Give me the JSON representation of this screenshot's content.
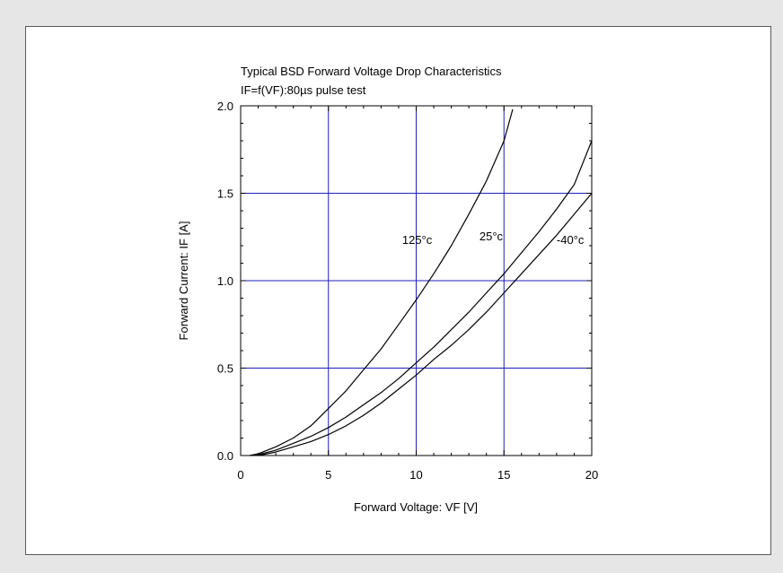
{
  "chart_data": {
    "type": "line",
    "title": "Typical BSD Forward Voltage Drop Characteristics",
    "subtitle": "IF=f(VF):80µs pulse test",
    "xlabel": "Forward Voltage: VF [V]",
    "ylabel": "Forward Current: IF [A]",
    "xlim": [
      0,
      20
    ],
    "ylim": [
      0,
      2.0
    ],
    "x_ticks": [
      0,
      5,
      10,
      15,
      20
    ],
    "x_tick_labels": [
      "0",
      "5",
      "10",
      "15",
      "20"
    ],
    "y_ticks": [
      0,
      0.5,
      1.0,
      1.5,
      2.0
    ],
    "y_tick_labels": [
      "0.0",
      "0.5",
      "1.0",
      "1.5",
      "2.0"
    ],
    "grid": true,
    "grid_color": "#1f1fbf",
    "series": [
      {
        "name": "125°c",
        "x": [
          0.5,
          1,
          2,
          3,
          4,
          5,
          6,
          7,
          8,
          9,
          10,
          11,
          12,
          13,
          14,
          15,
          15.5
        ],
        "y": [
          0.0,
          0.01,
          0.05,
          0.1,
          0.17,
          0.27,
          0.37,
          0.49,
          0.61,
          0.75,
          0.89,
          1.04,
          1.2,
          1.38,
          1.57,
          1.8,
          1.98
        ]
      },
      {
        "name": "25°c",
        "x": [
          0.8,
          2,
          3,
          4,
          5,
          6,
          7,
          8,
          9,
          10,
          11,
          12,
          13,
          14,
          15,
          16,
          17,
          18,
          19,
          20
        ],
        "y": [
          0.0,
          0.03,
          0.07,
          0.11,
          0.16,
          0.22,
          0.29,
          0.36,
          0.44,
          0.53,
          0.62,
          0.72,
          0.82,
          0.93,
          1.04,
          1.16,
          1.28,
          1.41,
          1.55,
          1.8
        ]
      },
      {
        "name": "-40°c",
        "x": [
          1,
          2,
          3,
          4,
          5,
          6,
          7,
          8,
          9,
          10,
          11,
          12,
          13,
          14,
          15,
          16,
          17,
          18,
          19,
          20
        ],
        "y": [
          0.0,
          0.02,
          0.05,
          0.08,
          0.12,
          0.17,
          0.23,
          0.3,
          0.38,
          0.46,
          0.55,
          0.63,
          0.72,
          0.82,
          0.93,
          1.04,
          1.15,
          1.26,
          1.38,
          1.5
        ]
      }
    ],
    "annotations": [
      {
        "text": "125°c",
        "x": 9.2,
        "y": 1.21
      },
      {
        "text": "25°c",
        "x": 13.6,
        "y": 1.23
      },
      {
        "text": "-40°c",
        "x": 18.0,
        "y": 1.21
      }
    ]
  }
}
